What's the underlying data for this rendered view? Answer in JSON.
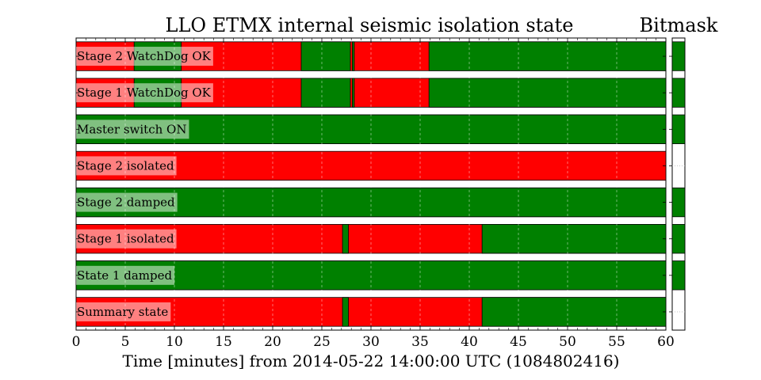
{
  "chart_data": {
    "type": "segment-timeline",
    "title": "LLO ETMX internal seismic isolation state",
    "side_title": "Bitmask",
    "xlabel": "Time [minutes] from 2014-05-22 14:00:00 UTC (1084802416)",
    "xlim": [
      0,
      60
    ],
    "xticks": [
      "0",
      "5",
      "10",
      "15",
      "20",
      "25",
      "30",
      "35",
      "40",
      "45",
      "50",
      "55",
      "60"
    ],
    "grid": true,
    "colors": {
      "active": "#008000",
      "inactive": "#ff0000"
    },
    "rows": [
      {
        "label": "Stage 2 WatchDog OK",
        "bitmask": true,
        "active": [
          [
            5.9,
            10.7
          ],
          [
            22.9,
            27.9
          ],
          [
            28.1,
            28.3
          ],
          [
            35.9,
            60
          ]
        ]
      },
      {
        "label": "Stage 1 WatchDog OK",
        "bitmask": true,
        "active": [
          [
            5.9,
            10.7
          ],
          [
            22.9,
            27.9
          ],
          [
            28.1,
            28.3
          ],
          [
            35.9,
            60
          ]
        ]
      },
      {
        "label": "Master switch ON",
        "bitmask": true,
        "active": [
          [
            0,
            60
          ]
        ]
      },
      {
        "label": "Stage 2 isolated",
        "bitmask": false,
        "active": []
      },
      {
        "label": "Stage 2 damped",
        "bitmask": true,
        "active": [
          [
            0,
            60
          ]
        ]
      },
      {
        "label": "Stage 1 isolated",
        "bitmask": true,
        "active": [
          [
            27.1,
            27.7
          ],
          [
            41.3,
            60
          ]
        ]
      },
      {
        "label": "State 1 damped",
        "bitmask": true,
        "active": [
          [
            0,
            60
          ]
        ]
      },
      {
        "label": "Summary state",
        "bitmask": false,
        "active": [
          [
            27.1,
            27.7
          ],
          [
            41.3,
            60
          ]
        ]
      }
    ]
  }
}
